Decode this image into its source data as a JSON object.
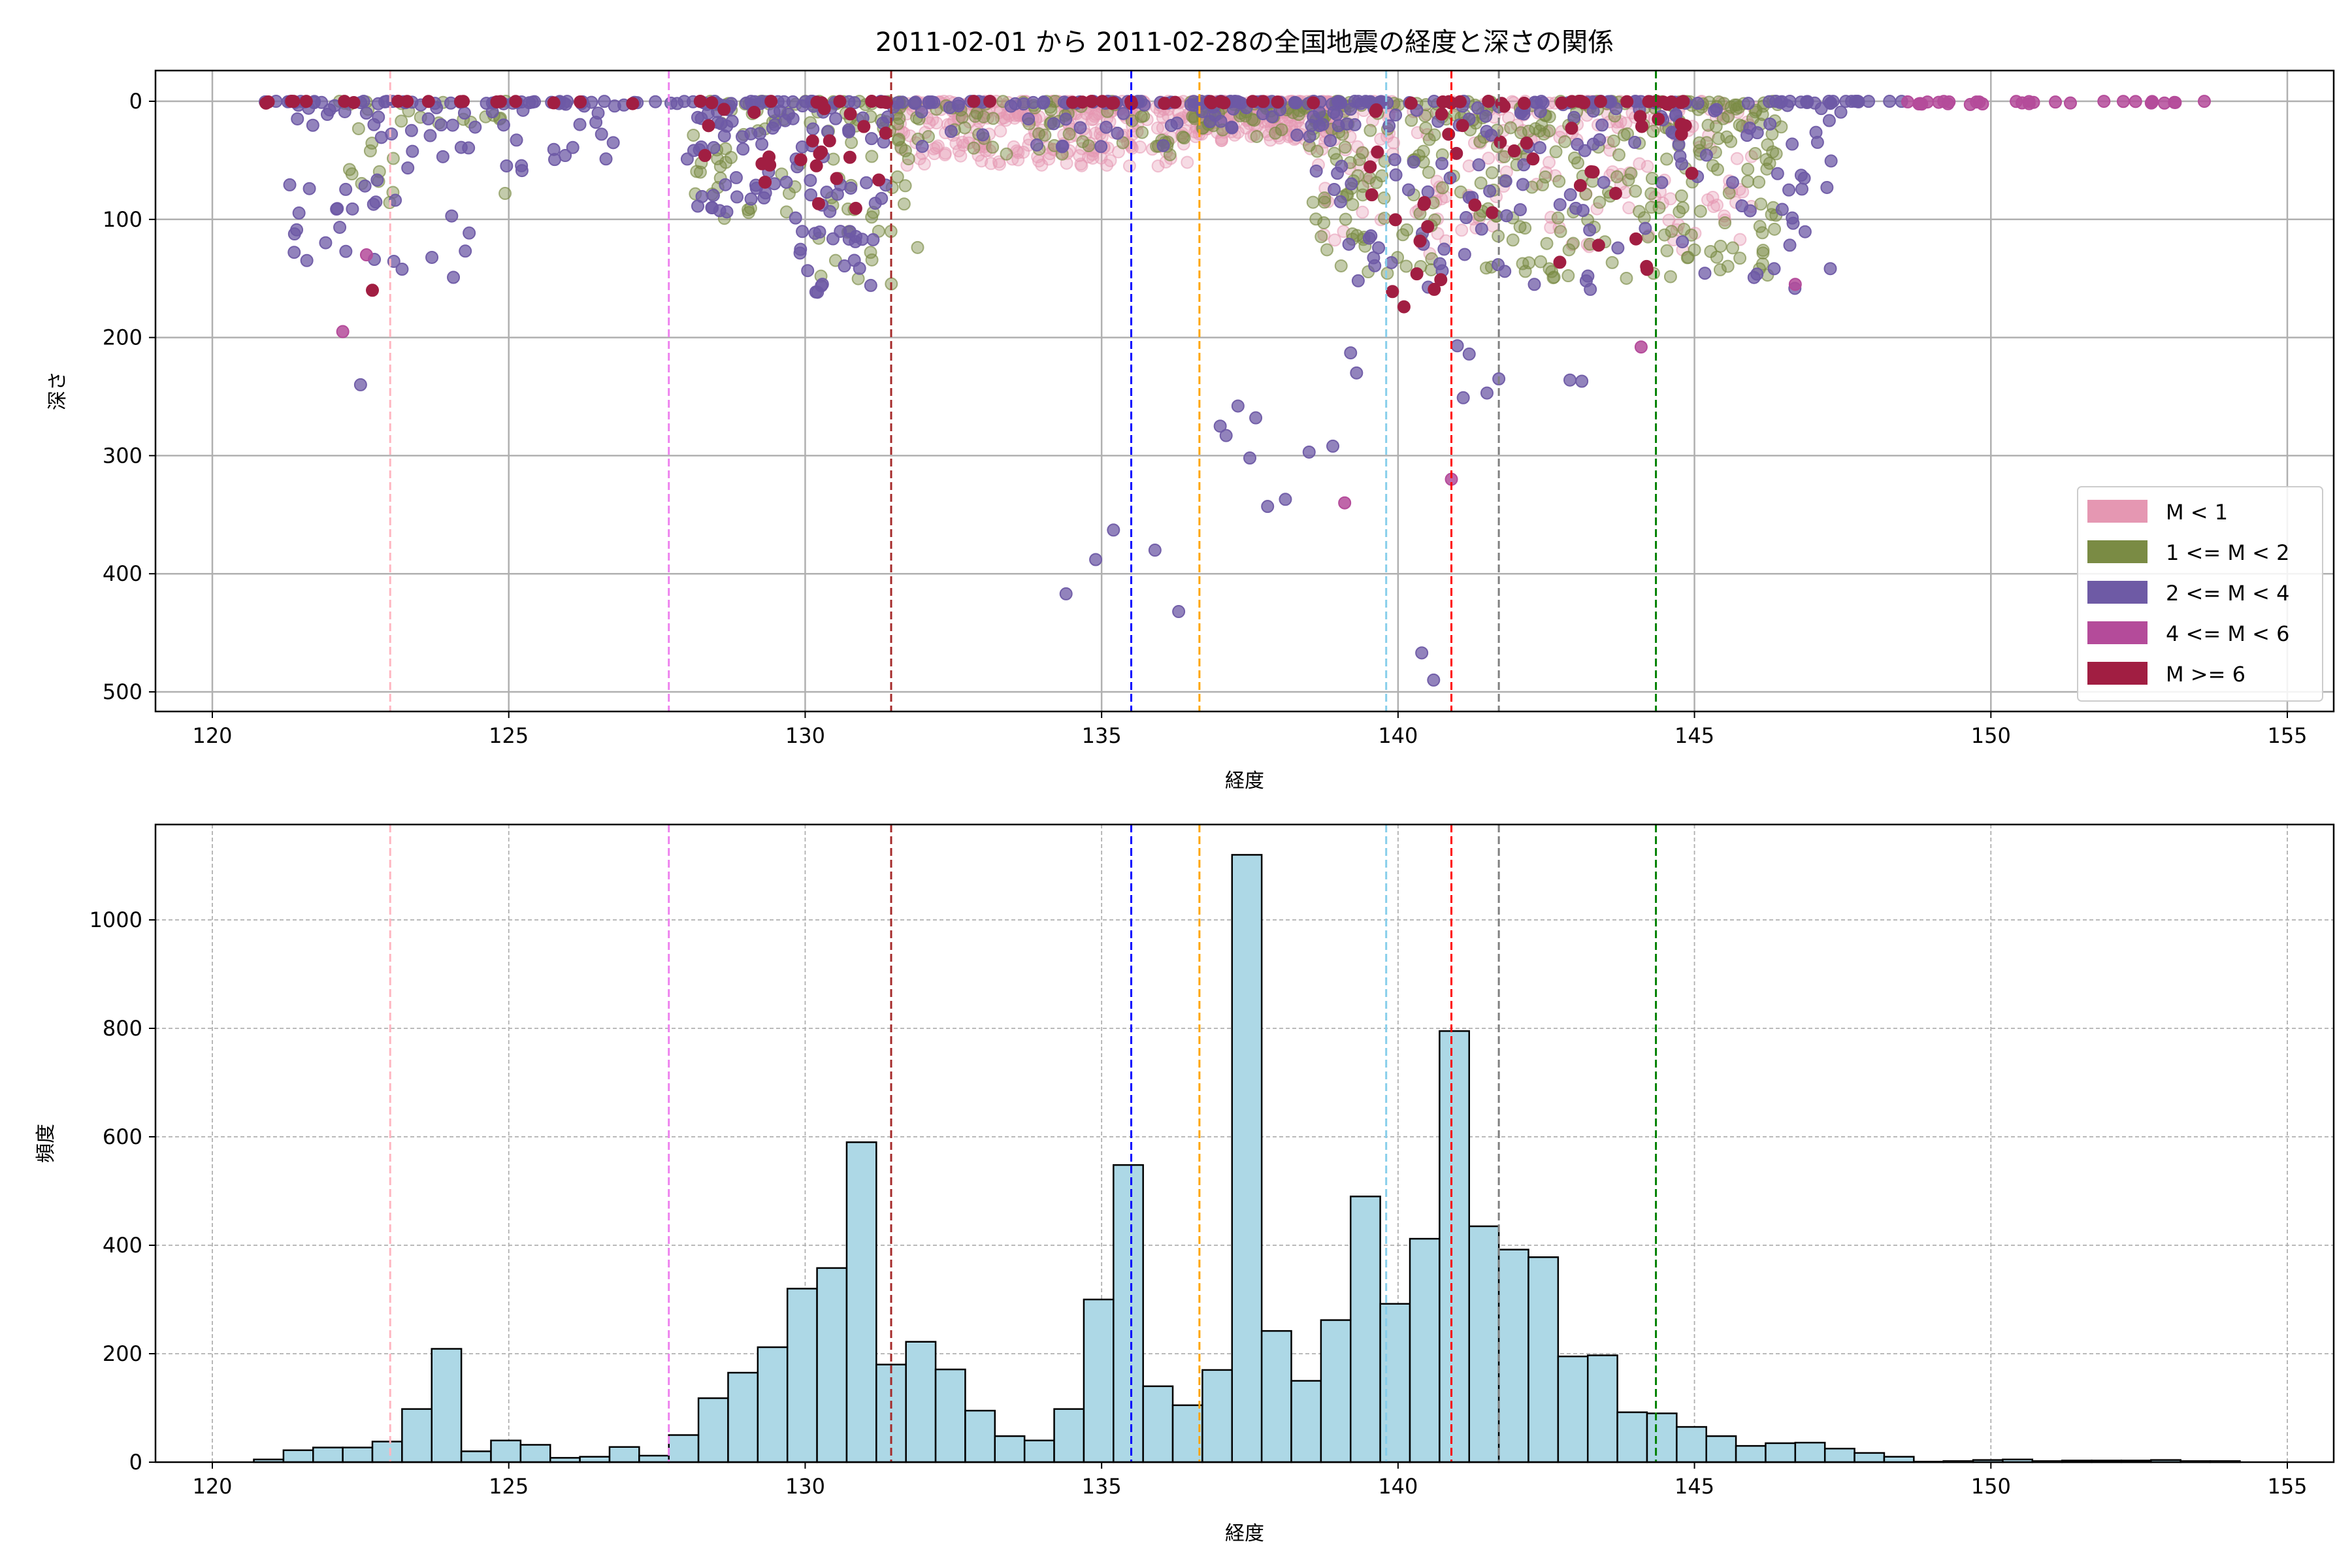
{
  "title": "2011-02-01 から 2011-02-28の全国地震の経度と深さの関係",
  "chart_data": [
    {
      "type": "scatter",
      "xlabel": "経度",
      "ylabel": "深さ",
      "xlim": [
        119,
        156
      ],
      "ylim": [
        515,
        -25
      ],
      "y_inverted": true,
      "xticks": [
        120,
        125,
        130,
        135,
        140,
        145,
        150,
        155
      ],
      "yticks": [
        0,
        100,
        200,
        300,
        400,
        500
      ],
      "grid": true,
      "legend_position": "lower-right",
      "classes": [
        {
          "key": "m0",
          "label": "M < 1",
          "color": "#e597b2",
          "alpha": 0.35
        },
        {
          "key": "m1",
          "label": "1 <= M < 2",
          "color": "#7a8b44",
          "alpha": 0.45
        },
        {
          "key": "m2",
          "label": "2 <= M < 4",
          "color": "#6e5aa5",
          "alpha": 0.75
        },
        {
          "key": "m4",
          "label": "4 <= M < 6",
          "color": "#b44b9a",
          "alpha": 0.85
        },
        {
          "key": "m6",
          "label": "M >= 6",
          "color": "#a11e42",
          "alpha": 1
        }
      ],
      "clusters": [
        {
          "lon": [
            120.7,
            148.5
          ],
          "depth": [
            0,
            2
          ],
          "n": 160,
          "cls": "m2"
        },
        {
          "lon": [
            120.7,
            145
          ],
          "depth": [
            0,
            2
          ],
          "n": 60,
          "cls": "m6"
        },
        {
          "lon": [
            148.5,
            154.2
          ],
          "depth": [
            0,
            3
          ],
          "n": 30,
          "cls": "m4"
        },
        {
          "lon": [
            121.3,
            124.5
          ],
          "depth": [
            0,
            150
          ],
          "n": 60,
          "cls": "m2"
        },
        {
          "lon": [
            121.8,
            125
          ],
          "depth": [
            0,
            100
          ],
          "n": 30,
          "cls": "m1"
        },
        {
          "lon": [
            124.5,
            127
          ],
          "depth": [
            0,
            60
          ],
          "n": 25,
          "cls": "m2"
        },
        {
          "lon": [
            128,
            131.5
          ],
          "depth": [
            0,
            100
          ],
          "n": 90,
          "cls": "m2"
        },
        {
          "lon": [
            128,
            131.8
          ],
          "depth": [
            0,
            100
          ],
          "n": 90,
          "cls": "m1"
        },
        {
          "lon": [
            128.3,
            131.5
          ],
          "depth": [
            0,
            100
          ],
          "n": 25,
          "cls": "m6"
        },
        {
          "lon": [
            129.8,
            131.2
          ],
          "depth": [
            110,
            170
          ],
          "n": 22,
          "cls": "m2"
        },
        {
          "lon": [
            130,
            132
          ],
          "depth": [
            110,
            160
          ],
          "n": 12,
          "cls": "m1"
        },
        {
          "lon": [
            131.5,
            136.5
          ],
          "depth": [
            0,
            55
          ],
          "n": 300,
          "cls": "m0"
        },
        {
          "lon": [
            131.5,
            136.5
          ],
          "depth": [
            0,
            50
          ],
          "n": 70,
          "cls": "m1"
        },
        {
          "lon": [
            131.5,
            136.5
          ],
          "depth": [
            0,
            40
          ],
          "n": 30,
          "cls": "m2"
        },
        {
          "lon": [
            136.5,
            139
          ],
          "depth": [
            0,
            35
          ],
          "n": 220,
          "cls": "m0"
        },
        {
          "lon": [
            136.5,
            139
          ],
          "depth": [
            0,
            30
          ],
          "n": 60,
          "cls": "m1"
        },
        {
          "lon": [
            136.5,
            139
          ],
          "depth": [
            0,
            30
          ],
          "n": 30,
          "cls": "m2"
        },
        {
          "lon": [
            138.5,
            146.5
          ],
          "depth": [
            0,
            150
          ],
          "n": 320,
          "cls": "m1"
        },
        {
          "lon": [
            138.5,
            146
          ],
          "depth": [
            0,
            130
          ],
          "n": 220,
          "cls": "m0"
        },
        {
          "lon": [
            138.5,
            147.5
          ],
          "depth": [
            0,
            160
          ],
          "n": 150,
          "cls": "m2"
        },
        {
          "lon": [
            139.5,
            145
          ],
          "depth": [
            0,
            170
          ],
          "n": 50,
          "cls": "m6"
        }
      ],
      "points": [
        [
          122.5,
          240,
          "m2"
        ],
        [
          122.2,
          195,
          "m4"
        ],
        [
          122.6,
          130,
          "m4"
        ],
        [
          122.7,
          160,
          "m6"
        ],
        [
          134.4,
          417,
          "m2"
        ],
        [
          134.9,
          388,
          "m2"
        ],
        [
          135.2,
          363,
          "m2"
        ],
        [
          135.9,
          380,
          "m2"
        ],
        [
          136.3,
          432,
          "m2"
        ],
        [
          137.0,
          275,
          "m2"
        ],
        [
          137.1,
          283,
          "m2"
        ],
        [
          137.3,
          258,
          "m2"
        ],
        [
          137.5,
          302,
          "m2"
        ],
        [
          137.6,
          268,
          "m2"
        ],
        [
          137.8,
          343,
          "m2"
        ],
        [
          138.1,
          337,
          "m2"
        ],
        [
          138.5,
          297,
          "m2"
        ],
        [
          138.9,
          292,
          "m2"
        ],
        [
          139.1,
          340,
          "m4"
        ],
        [
          140.4,
          467,
          "m2"
        ],
        [
          140.6,
          490,
          "m2"
        ],
        [
          140.9,
          320,
          "m4"
        ],
        [
          142.9,
          236,
          "m2"
        ],
        [
          143.1,
          237,
          "m2"
        ],
        [
          144.1,
          208,
          "m4"
        ],
        [
          141.5,
          247,
          "m2"
        ],
        [
          141.7,
          235,
          "m2"
        ],
        [
          141.0,
          207,
          "m2"
        ],
        [
          141.2,
          214,
          "m2"
        ],
        [
          139.3,
          230,
          "m2"
        ],
        [
          139.2,
          213,
          "m2"
        ],
        [
          141.1,
          251,
          "m2"
        ],
        [
          146.7,
          155,
          "m4"
        ],
        [
          140.1,
          174,
          "m6"
        ]
      ],
      "reference_lines": [
        {
          "x": 123.0,
          "color": "#ffb6c1"
        },
        {
          "x": 127.7,
          "color": "#ee82ee"
        },
        {
          "x": 131.45,
          "color": "#a52a2a"
        },
        {
          "x": 135.5,
          "color": "#0000ff"
        },
        {
          "x": 136.65,
          "color": "#ffa500"
        },
        {
          "x": 139.8,
          "color": "#87ceeb"
        },
        {
          "x": 140.9,
          "color": "#ff0000"
        },
        {
          "x": 141.7,
          "color": "#808080"
        },
        {
          "x": 144.35,
          "color": "#008000"
        }
      ]
    },
    {
      "type": "bar",
      "subtype": "histogram",
      "xlabel": "経度",
      "ylabel": "頻度",
      "xlim": [
        119,
        156
      ],
      "ylim": [
        0,
        1175
      ],
      "xticks": [
        120,
        125,
        130,
        135,
        140,
        145,
        150,
        155
      ],
      "yticks": [
        0,
        200,
        400,
        600,
        800,
        1000
      ],
      "grid": true,
      "bar_color": "#add8e6",
      "edge_color": "#000000",
      "bin_start": 120.7,
      "bin_width": 0.5,
      "values": [
        5,
        22,
        27,
        27,
        38,
        98,
        209,
        20,
        40,
        32,
        8,
        10,
        28,
        12,
        50,
        118,
        165,
        212,
        320,
        358,
        590,
        180,
        222,
        171,
        95,
        48,
        40,
        98,
        300,
        548,
        140,
        105,
        170,
        1120,
        242,
        150,
        262,
        490,
        292,
        412,
        795,
        435,
        392,
        378,
        195,
        197,
        92,
        90,
        65,
        48,
        30,
        35,
        36,
        25,
        17,
        10,
        1,
        2,
        4,
        5,
        2,
        3,
        3,
        3,
        4,
        2,
        2
      ],
      "reference_lines": [
        {
          "x": 123.0,
          "color": "#ffb6c1"
        },
        {
          "x": 127.7,
          "color": "#ee82ee"
        },
        {
          "x": 131.45,
          "color": "#a52a2a"
        },
        {
          "x": 135.5,
          "color": "#0000ff"
        },
        {
          "x": 136.65,
          "color": "#ffa500"
        },
        {
          "x": 139.8,
          "color": "#87ceeb"
        },
        {
          "x": 140.9,
          "color": "#ff0000"
        },
        {
          "x": 141.7,
          "color": "#808080"
        },
        {
          "x": 144.35,
          "color": "#008000"
        }
      ]
    }
  ]
}
